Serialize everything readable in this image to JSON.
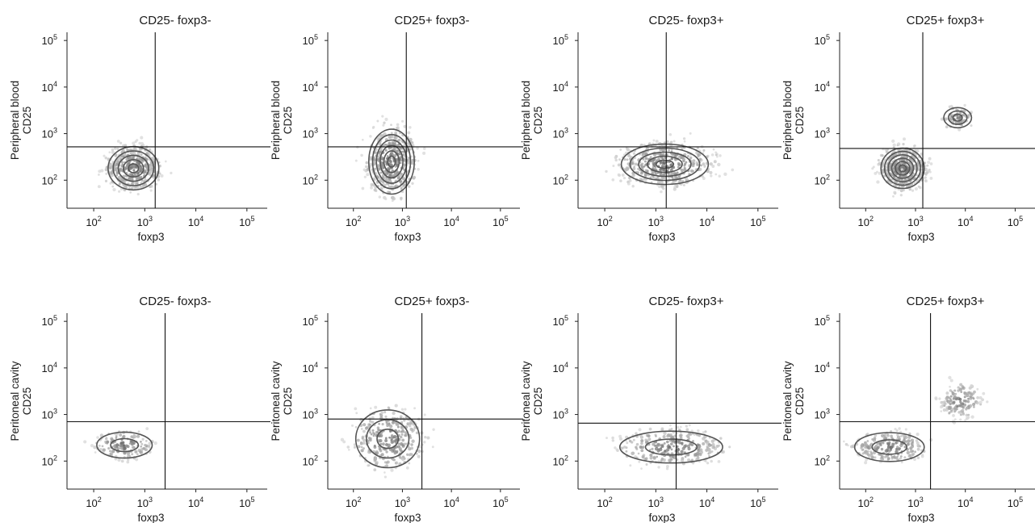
{
  "chart_data": [
    {
      "type": "scatter",
      "row": "Peripheral blood",
      "title": "CD25- foxp3-",
      "xlabel": "foxp3",
      "ylabel": [
        "Peripheral blood",
        "CD25"
      ],
      "x_scale": "log",
      "y_scale": "log",
      "xlim": [
        30,
        250000
      ],
      "ylim": [
        25,
        150000
      ],
      "x_ticks": [
        {
          "exp": "2",
          "value": 100
        },
        {
          "exp": "3",
          "value": 1000
        },
        {
          "exp": "4",
          "value": 10000
        },
        {
          "exp": "5",
          "value": 100000
        }
      ],
      "y_ticks": [
        {
          "exp": "2",
          "value": 100
        },
        {
          "exp": "3",
          "value": 1000
        },
        {
          "exp": "4",
          "value": 10000
        },
        {
          "exp": "5",
          "value": 100000
        }
      ],
      "gate": {
        "x": 1600,
        "y": 520
      },
      "populations": [
        {
          "x": 600,
          "y": 180,
          "spread_x": 0.32,
          "spread_y": 0.3,
          "count": 380,
          "contours": 5
        }
      ]
    },
    {
      "type": "scatter",
      "row": "Peripheral blood",
      "title": "CD25+ foxp3-",
      "xlabel": "foxp3",
      "ylabel": [
        "Peripheral blood",
        "CD25"
      ],
      "x_scale": "log",
      "y_scale": "log",
      "xlim": [
        30,
        250000
      ],
      "ylim": [
        25,
        150000
      ],
      "x_ticks": [
        {
          "exp": "2",
          "value": 100
        },
        {
          "exp": "3",
          "value": 1000
        },
        {
          "exp": "4",
          "value": 10000
        },
        {
          "exp": "5",
          "value": 100000
        }
      ],
      "y_ticks": [
        {
          "exp": "2",
          "value": 100
        },
        {
          "exp": "3",
          "value": 1000
        },
        {
          "exp": "4",
          "value": 10000
        },
        {
          "exp": "5",
          "value": 100000
        }
      ],
      "gate": {
        "x": 1200,
        "y": 520
      },
      "populations": [
        {
          "x": 600,
          "y": 250,
          "spread_x": 0.3,
          "spread_y": 0.45,
          "count": 420,
          "contours": 6
        }
      ]
    },
    {
      "type": "scatter",
      "row": "Peripheral blood",
      "title": "CD25- foxp3+",
      "xlabel": "foxp3",
      "ylabel": [
        "Peripheral blood",
        "CD25"
      ],
      "x_scale": "log",
      "y_scale": "log",
      "xlim": [
        30,
        250000
      ],
      "ylim": [
        25,
        150000
      ],
      "x_ticks": [
        {
          "exp": "2",
          "value": 100
        },
        {
          "exp": "3",
          "value": 1000
        },
        {
          "exp": "4",
          "value": 10000
        },
        {
          "exp": "5",
          "value": 100000
        }
      ],
      "y_ticks": [
        {
          "exp": "2",
          "value": 100
        },
        {
          "exp": "3",
          "value": 1000
        },
        {
          "exp": "4",
          "value": 10000
        },
        {
          "exp": "5",
          "value": 100000
        }
      ],
      "gate": {
        "x": 1600,
        "y": 520
      },
      "populations": [
        {
          "x": 1500,
          "y": 220,
          "spread_x": 0.55,
          "spread_y": 0.28,
          "count": 420,
          "contours": 5
        }
      ]
    },
    {
      "type": "scatter",
      "row": "Peripheral blood",
      "title": "CD25+ foxp3+",
      "xlabel": "foxp3",
      "ylabel": [
        "Peripheral blood",
        "CD25"
      ],
      "x_scale": "log",
      "y_scale": "log",
      "xlim": [
        30,
        250000
      ],
      "ylim": [
        25,
        150000
      ],
      "x_ticks": [
        {
          "exp": "2",
          "value": 100
        },
        {
          "exp": "3",
          "value": 1000
        },
        {
          "exp": "4",
          "value": 10000
        },
        {
          "exp": "5",
          "value": 100000
        }
      ],
      "y_ticks": [
        {
          "exp": "2",
          "value": 100
        },
        {
          "exp": "3",
          "value": 1000
        },
        {
          "exp": "4",
          "value": 10000
        },
        {
          "exp": "5",
          "value": 100000
        }
      ],
      "gate": {
        "x": 1400,
        "y": 480
      },
      "populations": [
        {
          "x": 550,
          "y": 180,
          "spread_x": 0.28,
          "spread_y": 0.28,
          "count": 380,
          "contours": 6
        },
        {
          "x": 7000,
          "y": 2200,
          "spread_x": 0.18,
          "spread_y": 0.14,
          "count": 60,
          "contours": 3
        }
      ]
    },
    {
      "type": "scatter",
      "row": "Peritoneal cavity",
      "title": "CD25- foxp3-",
      "xlabel": "foxp3",
      "ylabel": [
        "Peritoneal cavity",
        "CD25"
      ],
      "x_scale": "log",
      "y_scale": "log",
      "xlim": [
        30,
        250000
      ],
      "ylim": [
        25,
        150000
      ],
      "x_ticks": [
        {
          "exp": "2",
          "value": 100
        },
        {
          "exp": "3",
          "value": 1000
        },
        {
          "exp": "4",
          "value": 10000
        },
        {
          "exp": "5",
          "value": 100000
        }
      ],
      "y_ticks": [
        {
          "exp": "2",
          "value": 100
        },
        {
          "exp": "3",
          "value": 1000
        },
        {
          "exp": "4",
          "value": 10000
        },
        {
          "exp": "5",
          "value": 100000
        }
      ],
      "gate": {
        "x": 2500,
        "y": 700
      },
      "populations": [
        {
          "x": 400,
          "y": 220,
          "spread_x": 0.35,
          "spread_y": 0.18,
          "count": 150,
          "contours": 2
        }
      ]
    },
    {
      "type": "scatter",
      "row": "Peritoneal cavity",
      "title": "CD25+ foxp3-",
      "xlabel": "foxp3",
      "ylabel": [
        "Peritoneal cavity",
        "CD25"
      ],
      "x_scale": "log",
      "y_scale": "log",
      "xlim": [
        30,
        250000
      ],
      "ylim": [
        25,
        150000
      ],
      "x_ticks": [
        {
          "exp": "2",
          "value": 100
        },
        {
          "exp": "3",
          "value": 1000
        },
        {
          "exp": "4",
          "value": 10000
        },
        {
          "exp": "5",
          "value": 100000
        }
      ],
      "y_ticks": [
        {
          "exp": "2",
          "value": 100
        },
        {
          "exp": "3",
          "value": 1000
        },
        {
          "exp": "4",
          "value": 10000
        },
        {
          "exp": "5",
          "value": 100000
        }
      ],
      "gate": {
        "x": 2500,
        "y": 800
      },
      "populations": [
        {
          "x": 500,
          "y": 300,
          "spread_x": 0.42,
          "spread_y": 0.4,
          "count": 320,
          "contours": 3
        }
      ]
    },
    {
      "type": "scatter",
      "row": "Peritoneal cavity",
      "title": "CD25- foxp3+",
      "xlabel": "foxp3",
      "ylabel": [
        "Peritoneal cavity",
        "CD25"
      ],
      "x_scale": "log",
      "y_scale": "log",
      "xlim": [
        30,
        250000
      ],
      "ylim": [
        25,
        150000
      ],
      "x_ticks": [
        {
          "exp": "2",
          "value": 100
        },
        {
          "exp": "3",
          "value": 1000
        },
        {
          "exp": "4",
          "value": 10000
        },
        {
          "exp": "5",
          "value": 100000
        }
      ],
      "y_ticks": [
        {
          "exp": "2",
          "value": 100
        },
        {
          "exp": "3",
          "value": 1000
        },
        {
          "exp": "4",
          "value": 10000
        },
        {
          "exp": "5",
          "value": 100000
        }
      ],
      "gate": {
        "x": 2500,
        "y": 650
      },
      "populations": [
        {
          "x": 2000,
          "y": 200,
          "spread_x": 0.65,
          "spread_y": 0.22,
          "count": 300,
          "contours": 2
        }
      ]
    },
    {
      "type": "scatter",
      "row": "Peritoneal cavity",
      "title": "CD25+ foxp3+",
      "xlabel": "foxp3",
      "ylabel": [
        "Peritoneal cavity",
        "CD25"
      ],
      "x_scale": "log",
      "y_scale": "log",
      "xlim": [
        30,
        250000
      ],
      "ylim": [
        25,
        150000
      ],
      "x_ticks": [
        {
          "exp": "2",
          "value": 100
        },
        {
          "exp": "3",
          "value": 1000
        },
        {
          "exp": "4",
          "value": 10000
        },
        {
          "exp": "5",
          "value": 100000
        }
      ],
      "y_ticks": [
        {
          "exp": "2",
          "value": 100
        },
        {
          "exp": "3",
          "value": 1000
        },
        {
          "exp": "4",
          "value": 10000
        },
        {
          "exp": "5",
          "value": 100000
        }
      ],
      "gate": {
        "x": 2000,
        "y": 700
      },
      "populations": [
        {
          "x": 300,
          "y": 200,
          "spread_x": 0.45,
          "spread_y": 0.2,
          "count": 220,
          "contours": 2
        },
        {
          "x": 8000,
          "y": 2000,
          "spread_x": 0.25,
          "spread_y": 0.22,
          "count": 140,
          "contours": 0
        }
      ]
    }
  ]
}
